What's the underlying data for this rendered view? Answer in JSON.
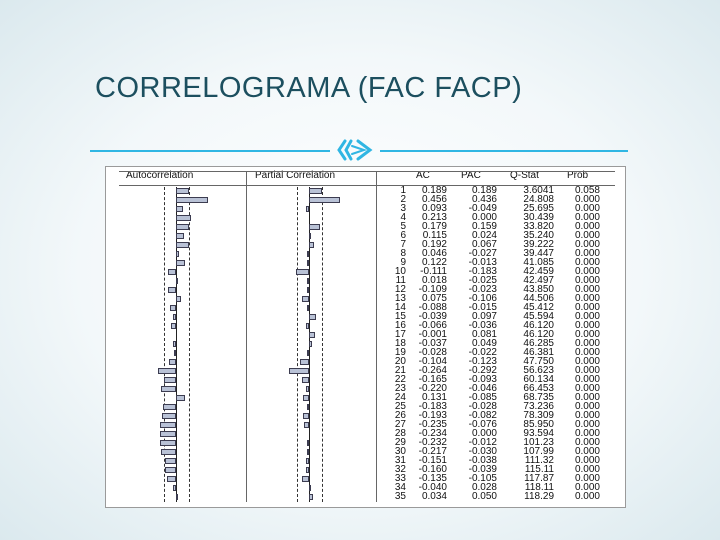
{
  "slide": {
    "title": "CORRELOGRAMA (FAC FACP)",
    "accent_color": "#30b6e3",
    "title_color": "#1c4f5f",
    "divider_icon": "triple-chevron-icon"
  },
  "correlogram": {
    "headers": {
      "ac_plot": "Autocorrelation",
      "pac_plot": "Partial Correlation",
      "ac": "AC",
      "pac": "PAC",
      "qstat": "Q-Stat",
      "prob": "Prob"
    },
    "rows": [
      {
        "lag": "1",
        "ac": "0.189",
        "pac": "0.189",
        "q": "3.6041",
        "prob": "0.058"
      },
      {
        "lag": "2",
        "ac": "0.456",
        "pac": "0.436",
        "q": "24.808",
        "prob": "0.000"
      },
      {
        "lag": "3",
        "ac": "0.093",
        "pac": "-0.049",
        "q": "25.695",
        "prob": "0.000"
      },
      {
        "lag": "4",
        "ac": "0.213",
        "pac": "0.000",
        "q": "30.439",
        "prob": "0.000"
      },
      {
        "lag": "5",
        "ac": "0.179",
        "pac": "0.159",
        "q": "33.820",
        "prob": "0.000"
      },
      {
        "lag": "6",
        "ac": "0.115",
        "pac": "0.024",
        "q": "35.240",
        "prob": "0.000"
      },
      {
        "lag": "7",
        "ac": "0.192",
        "pac": "0.067",
        "q": "39.222",
        "prob": "0.000"
      },
      {
        "lag": "8",
        "ac": "0.046",
        "pac": "-0.027",
        "q": "39.447",
        "prob": "0.000"
      },
      {
        "lag": "9",
        "ac": "0.122",
        "pac": "-0.013",
        "q": "41.085",
        "prob": "0.000"
      },
      {
        "lag": "10",
        "ac": "-0.111",
        "pac": "-0.183",
        "q": "42.459",
        "prob": "0.000"
      },
      {
        "lag": "11",
        "ac": "0.018",
        "pac": "-0.025",
        "q": "42.497",
        "prob": "0.000"
      },
      {
        "lag": "12",
        "ac": "-0.109",
        "pac": "-0.023",
        "q": "43.850",
        "prob": "0.000"
      },
      {
        "lag": "13",
        "ac": "0.075",
        "pac": "-0.106",
        "q": "44.506",
        "prob": "0.000"
      },
      {
        "lag": "14",
        "ac": "-0.088",
        "pac": "-0.015",
        "q": "45.412",
        "prob": "0.000"
      },
      {
        "lag": "15",
        "ac": "-0.039",
        "pac": "0.097",
        "q": "45.594",
        "prob": "0.000"
      },
      {
        "lag": "16",
        "ac": "-0.066",
        "pac": "-0.036",
        "q": "46.120",
        "prob": "0.000"
      },
      {
        "lag": "17",
        "ac": "-0.001",
        "pac": "0.081",
        "q": "46.120",
        "prob": "0.000"
      },
      {
        "lag": "18",
        "ac": "-0.037",
        "pac": "0.049",
        "q": "46.285",
        "prob": "0.000"
      },
      {
        "lag": "19",
        "ac": "-0.028",
        "pac": "-0.022",
        "q": "46.381",
        "prob": "0.000"
      },
      {
        "lag": "20",
        "ac": "-0.104",
        "pac": "-0.123",
        "q": "47.750",
        "prob": "0.000"
      },
      {
        "lag": "21",
        "ac": "-0.264",
        "pac": "-0.292",
        "q": "56.623",
        "prob": "0.000"
      },
      {
        "lag": "22",
        "ac": "-0.165",
        "pac": "-0.093",
        "q": "60.134",
        "prob": "0.000"
      },
      {
        "lag": "23",
        "ac": "-0.220",
        "pac": "-0.046",
        "q": "66.453",
        "prob": "0.000"
      },
      {
        "lag": "24",
        "ac": "0.131",
        "pac": "-0.085",
        "q": "68.735",
        "prob": "0.000"
      },
      {
        "lag": "25",
        "ac": "-0.183",
        "pac": "-0.028",
        "q": "73.236",
        "prob": "0.000"
      },
      {
        "lag": "26",
        "ac": "-0.193",
        "pac": "-0.082",
        "q": "78.309",
        "prob": "0.000"
      },
      {
        "lag": "27",
        "ac": "-0.235",
        "pac": "-0.076",
        "q": "85.950",
        "prob": "0.000"
      },
      {
        "lag": "28",
        "ac": "-0.234",
        "pac": "0.000",
        "q": "93.594",
        "prob": "0.000"
      },
      {
        "lag": "29",
        "ac": "-0.232",
        "pac": "-0.012",
        "q": "101.23",
        "prob": "0.000"
      },
      {
        "lag": "30",
        "ac": "-0.217",
        "pac": "-0.030",
        "q": "107.99",
        "prob": "0.000"
      },
      {
        "lag": "31",
        "ac": "-0.151",
        "pac": "-0.038",
        "q": "111.32",
        "prob": "0.000"
      },
      {
        "lag": "32",
        "ac": "-0.160",
        "pac": "-0.039",
        "q": "115.11",
        "prob": "0.000"
      },
      {
        "lag": "33",
        "ac": "-0.135",
        "pac": "-0.105",
        "q": "117.87",
        "prob": "0.000"
      },
      {
        "lag": "34",
        "ac": "-0.040",
        "pac": "0.028",
        "q": "118.11",
        "prob": "0.000"
      },
      {
        "lag": "35",
        "ac": "0.034",
        "pac": "0.050",
        "q": "118.29",
        "prob": "0.000"
      }
    ]
  }
}
